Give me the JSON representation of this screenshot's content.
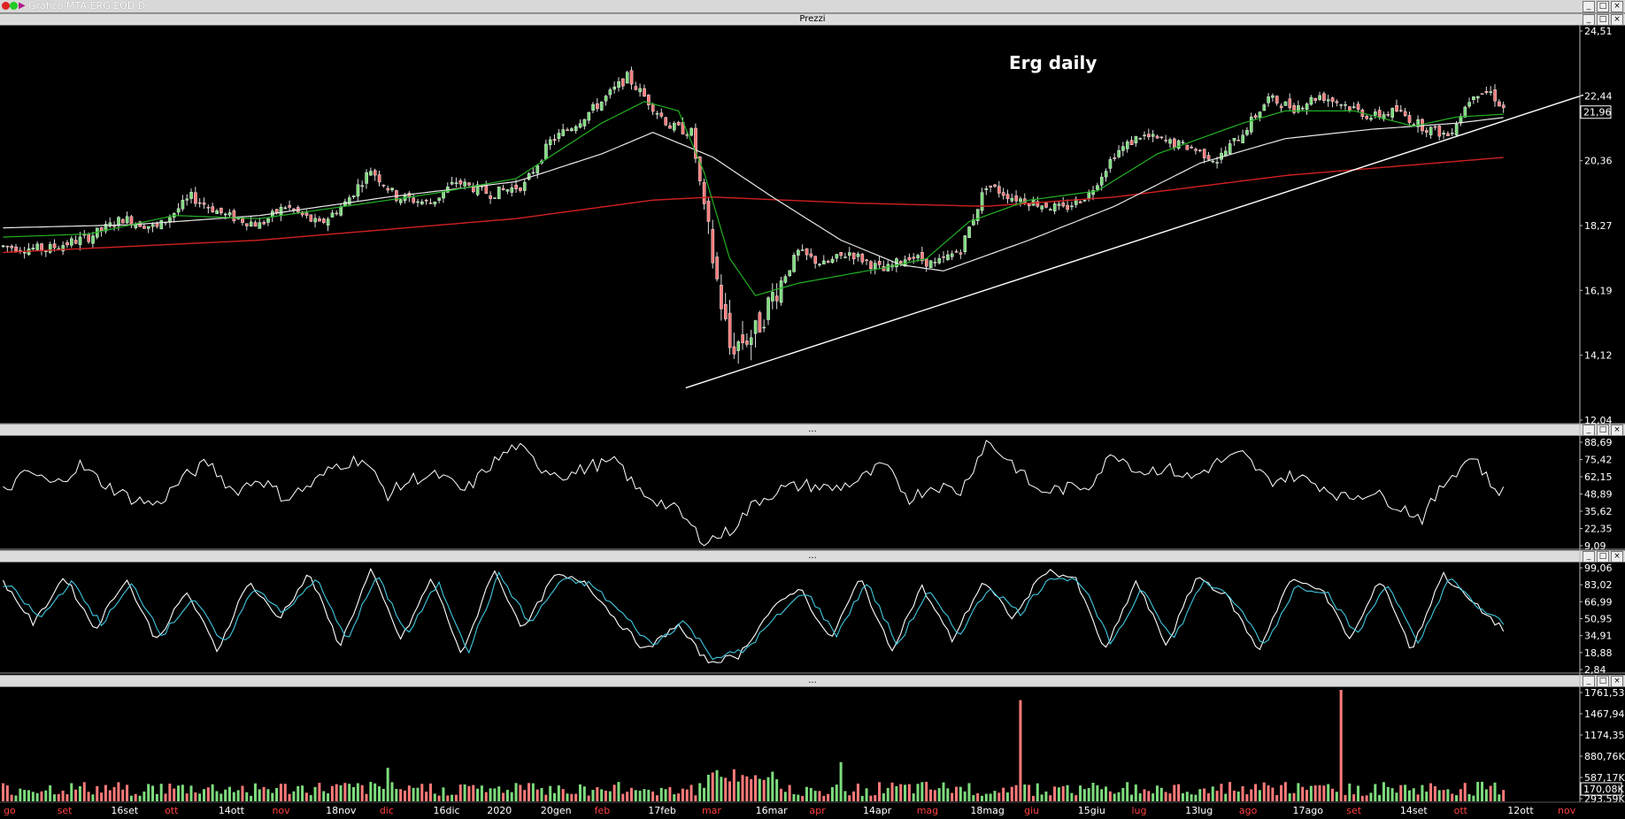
{
  "window": {
    "title": "Grafico MTA-ERG EOD D",
    "buttons": [
      "_",
      "□",
      "×"
    ]
  },
  "panes": {
    "price_title": "Prezzi",
    "rsi_title": "...",
    "stoch_title": "...",
    "volume_title": "..."
  },
  "annotation": "Erg daily",
  "colors": {
    "background": "#000000",
    "candle_up": "#7ddc7d",
    "candle_down": "#ff7a7a",
    "ma_short": "#22b022",
    "ma_mid": "#e8e8e8",
    "ma_long": "#d02020",
    "stoch_k": "#ffffff",
    "stoch_d": "#40c8e0",
    "vol_up": "#7ddc7d",
    "vol_down": "#ff7a7a"
  },
  "chart_data": [
    {
      "type": "candlestick",
      "ylim": [
        12.04,
        24.51
      ],
      "yticks": [
        "24,51",
        "22,44",
        "20,36",
        "18,27",
        "16,19",
        "14,12",
        "12,04"
      ],
      "last_price_label": "21,96",
      "x_labels": [
        {
          "text": "go",
          "color": "red"
        },
        {
          "text": "set",
          "color": "red"
        },
        {
          "text": "16set",
          "color": "white"
        },
        {
          "text": "ott",
          "color": "red"
        },
        {
          "text": "14ott",
          "color": "white"
        },
        {
          "text": "nov",
          "color": "red"
        },
        {
          "text": "18nov",
          "color": "white"
        },
        {
          "text": "dic",
          "color": "red"
        },
        {
          "text": "16dic",
          "color": "white"
        },
        {
          "text": "2020",
          "color": "white"
        },
        {
          "text": "20gen",
          "color": "white"
        },
        {
          "text": "feb",
          "color": "red"
        },
        {
          "text": "17feb",
          "color": "white"
        },
        {
          "text": "mar",
          "color": "red"
        },
        {
          "text": "16mar",
          "color": "white"
        },
        {
          "text": "apr",
          "color": "red"
        },
        {
          "text": "14apr",
          "color": "white"
        },
        {
          "text": "mag",
          "color": "red"
        },
        {
          "text": "18mag",
          "color": "white"
        },
        {
          "text": "giu",
          "color": "red"
        },
        {
          "text": "15giu",
          "color": "white"
        },
        {
          "text": "lug",
          "color": "red"
        },
        {
          "text": "13lug",
          "color": "white"
        },
        {
          "text": "ago",
          "color": "red"
        },
        {
          "text": "17ago",
          "color": "white"
        },
        {
          "text": "set",
          "color": "red"
        },
        {
          "text": "14set",
          "color": "white"
        },
        {
          "text": "ott",
          "color": "red"
        },
        {
          "text": "12ott",
          "color": "white"
        },
        {
          "text": "nov",
          "color": "red"
        }
      ],
      "price_path": [
        [
          0,
          17.6
        ],
        [
          10,
          17.5
        ],
        [
          20,
          17.9
        ],
        [
          28,
          18.5
        ],
        [
          36,
          18.2
        ],
        [
          44,
          19.2
        ],
        [
          52,
          18.6
        ],
        [
          60,
          18.3
        ],
        [
          66,
          18.9
        ],
        [
          74,
          18.3
        ],
        [
          80,
          19.0
        ],
        [
          86,
          20.1
        ],
        [
          92,
          19.2
        ],
        [
          100,
          19.0
        ],
        [
          106,
          19.7
        ],
        [
          114,
          19.3
        ],
        [
          122,
          19.6
        ],
        [
          128,
          21.0
        ],
        [
          134,
          21.6
        ],
        [
          140,
          22.3
        ],
        [
          146,
          23.1
        ],
        [
          151,
          22.3
        ],
        [
          156,
          21.5
        ],
        [
          161,
          21.3
        ],
        [
          166,
          17.2
        ],
        [
          170,
          14.3
        ],
        [
          176,
          14.8
        ],
        [
          180,
          16.0
        ],
        [
          186,
          17.4
        ],
        [
          192,
          17.0
        ],
        [
          198,
          17.4
        ],
        [
          206,
          16.8
        ],
        [
          212,
          17.3
        ],
        [
          218,
          17.0
        ],
        [
          224,
          17.5
        ],
        [
          230,
          19.6
        ],
        [
          236,
          19.2
        ],
        [
          242,
          19.0
        ],
        [
          248,
          18.8
        ],
        [
          254,
          19.3
        ],
        [
          260,
          20.6
        ],
        [
          266,
          21.2
        ],
        [
          272,
          21.0
        ],
        [
          278,
          20.8
        ],
        [
          284,
          20.4
        ],
        [
          290,
          21.3
        ],
        [
          296,
          22.4
        ],
        [
          302,
          22.1
        ],
        [
          308,
          22.5
        ],
        [
          314,
          22.2
        ],
        [
          320,
          21.8
        ],
        [
          326,
          22.0
        ],
        [
          332,
          21.5
        ],
        [
          338,
          21.2
        ],
        [
          344,
          22.6
        ],
        [
          348,
          22.6
        ],
        [
          352,
          21.9
        ]
      ],
      "moving_averages": {
        "ma_short_path": [
          [
            0,
            17.9
          ],
          [
            20,
            18.0
          ],
          [
            40,
            18.6
          ],
          [
            60,
            18.5
          ],
          [
            80,
            18.9
          ],
          [
            100,
            19.3
          ],
          [
            120,
            19.8
          ],
          [
            140,
            21.6
          ],
          [
            150,
            22.3
          ],
          [
            158,
            22.0
          ],
          [
            164,
            20.0
          ],
          [
            170,
            17.2
          ],
          [
            176,
            16.0
          ],
          [
            186,
            16.4
          ],
          [
            206,
            16.9
          ],
          [
            216,
            17.2
          ],
          [
            226,
            18.4
          ],
          [
            240,
            19.1
          ],
          [
            256,
            19.4
          ],
          [
            270,
            20.6
          ],
          [
            290,
            21.6
          ],
          [
            300,
            22.0
          ],
          [
            316,
            22.0
          ],
          [
            330,
            21.5
          ],
          [
            340,
            21.8
          ],
          [
            352,
            21.9
          ]
        ],
        "ma_mid_path": [
          [
            0,
            18.2
          ],
          [
            30,
            18.3
          ],
          [
            60,
            18.6
          ],
          [
            90,
            19.2
          ],
          [
            120,
            19.7
          ],
          [
            140,
            20.6
          ],
          [
            152,
            21.3
          ],
          [
            166,
            20.5
          ],
          [
            180,
            19.2
          ],
          [
            196,
            17.8
          ],
          [
            210,
            17.0
          ],
          [
            220,
            16.8
          ],
          [
            240,
            17.8
          ],
          [
            260,
            18.9
          ],
          [
            280,
            20.3
          ],
          [
            300,
            21.1
          ],
          [
            320,
            21.4
          ],
          [
            340,
            21.6
          ],
          [
            352,
            21.8
          ]
        ],
        "ma_long_path": [
          [
            0,
            17.4
          ],
          [
            60,
            17.8
          ],
          [
            120,
            18.5
          ],
          [
            152,
            19.1
          ],
          [
            166,
            19.2
          ],
          [
            200,
            19.0
          ],
          [
            230,
            18.9
          ],
          [
            260,
            19.2
          ],
          [
            300,
            19.9
          ],
          [
            352,
            20.5
          ]
        ]
      },
      "trendline": {
        "from": [
          160,
          13.0
        ],
        "to": [
          352,
          21.7
        ]
      }
    },
    {
      "type": "line",
      "name": "RSI",
      "ylim": [
        9.09,
        88.69
      ],
      "yticks": [
        "88,69",
        "75,42",
        "62,15",
        "48,89",
        "35,62",
        "22,35",
        "9,09"
      ],
      "path": [
        [
          0,
          50
        ],
        [
          6,
          65
        ],
        [
          12,
          55
        ],
        [
          18,
          70
        ],
        [
          24,
          55
        ],
        [
          30,
          45
        ],
        [
          36,
          40
        ],
        [
          42,
          60
        ],
        [
          48,
          72
        ],
        [
          54,
          50
        ],
        [
          60,
          60
        ],
        [
          66,
          45
        ],
        [
          72,
          55
        ],
        [
          78,
          70
        ],
        [
          84,
          75
        ],
        [
          90,
          48
        ],
        [
          96,
          60
        ],
        [
          102,
          62
        ],
        [
          108,
          50
        ],
        [
          114,
          70
        ],
        [
          120,
          85
        ],
        [
          126,
          68
        ],
        [
          132,
          62
        ],
        [
          138,
          70
        ],
        [
          144,
          72
        ],
        [
          148,
          52
        ],
        [
          152,
          45
        ],
        [
          158,
          35
        ],
        [
          164,
          12
        ],
        [
          170,
          20
        ],
        [
          176,
          42
        ],
        [
          182,
          52
        ],
        [
          188,
          55
        ],
        [
          194,
          52
        ],
        [
          200,
          58
        ],
        [
          206,
          70
        ],
        [
          212,
          45
        ],
        [
          218,
          55
        ],
        [
          224,
          50
        ],
        [
          230,
          88
        ],
        [
          236,
          72
        ],
        [
          242,
          50
        ],
        [
          248,
          52
        ],
        [
          254,
          55
        ],
        [
          260,
          80
        ],
        [
          266,
          65
        ],
        [
          272,
          68
        ],
        [
          278,
          60
        ],
        [
          284,
          72
        ],
        [
          290,
          78
        ],
        [
          296,
          58
        ],
        [
          302,
          62
        ],
        [
          308,
          55
        ],
        [
          314,
          45
        ],
        [
          320,
          50
        ],
        [
          326,
          40
        ],
        [
          332,
          30
        ],
        [
          338,
          60
        ],
        [
          344,
          78
        ],
        [
          348,
          55
        ],
        [
          352,
          48
        ]
      ]
    },
    {
      "type": "line",
      "name": "Stochastic",
      "ylim": [
        2.84,
        99.06
      ],
      "yticks": [
        "99,06",
        "83,02",
        "66,99",
        "50,95",
        "34,91",
        "18,88",
        "2,84"
      ],
      "series": [
        {
          "key": "k",
          "values": [
            85,
            45,
            90,
            40,
            88,
            30,
            75,
            20,
            85,
            50,
            92,
            25,
            95,
            30,
            88,
            15,
            96,
            40,
            90,
            85,
            50,
            20,
            45,
            10,
            15,
            55,
            80,
            30,
            88,
            20,
            80,
            30,
            85,
            50,
            95,
            88,
            20,
            85,
            25,
            90,
            70,
            20,
            85,
            80,
            30,
            88,
            20,
            92,
            65,
            40
          ]
        },
        {
          "key": "d",
          "values": [
            80,
            50,
            85,
            45,
            82,
            35,
            70,
            25,
            80,
            55,
            88,
            30,
            90,
            35,
            84,
            20,
            92,
            45,
            86,
            82,
            55,
            25,
            48,
            14,
            20,
            50,
            76,
            35,
            84,
            25,
            76,
            35,
            80,
            55,
            90,
            84,
            25,
            80,
            30,
            86,
            66,
            25,
            80,
            76,
            35,
            84,
            25,
            88,
            60,
            42
          ]
        }
      ]
    },
    {
      "type": "bar",
      "name": "Volume",
      "ylim": [
        0,
        1761.53
      ],
      "yticks": [
        "1761,53K",
        "1467,94K",
        "1174,35K",
        "880,76K",
        "587,17K",
        "293,59K"
      ],
      "last_volume_label": "170,08K",
      "spikes": [
        {
          "x": 238,
          "value": 1600
        },
        {
          "x": 313,
          "value": 1761
        },
        {
          "x": 90,
          "value": 530
        },
        {
          "x": 196,
          "value": 620
        }
      ]
    }
  ]
}
